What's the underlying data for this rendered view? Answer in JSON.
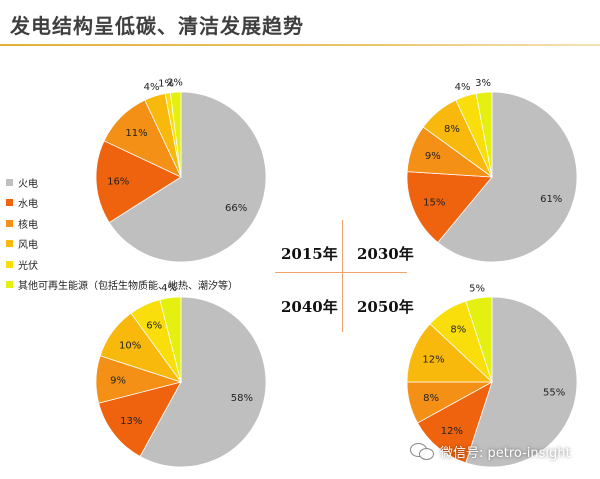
{
  "header": {
    "title": "发电结构呈低碳、清洁发展趋势"
  },
  "legend": {
    "items": [
      {
        "label": "火电",
        "color": "#bfbfbf"
      },
      {
        "label": "水电",
        "color": "#f0630e"
      },
      {
        "label": "核电",
        "color": "#f59016"
      },
      {
        "label": "风电",
        "color": "#f8b90c"
      },
      {
        "label": "光伏",
        "color": "#f9de0c"
      },
      {
        "label": "其他可再生能源（包括生物质能、地热、潮汐等）",
        "color": "#e4f00f"
      }
    ]
  },
  "years": {
    "y2015": "2015年",
    "y2030": "2030年",
    "y2040": "2040年",
    "y2050": "2050年"
  },
  "watermark": {
    "text": "微信号: petro-insight"
  },
  "chart_data": [
    {
      "type": "pie",
      "label": "2015年",
      "categories": [
        "火电",
        "水电",
        "核电",
        "风电",
        "光伏",
        "其他可再生能源（包括生物质能、地热、潮汐等）"
      ],
      "values": [
        66,
        16,
        11,
        4,
        1,
        2
      ],
      "labels": [
        "66%",
        "16%",
        "11%",
        "4%",
        "1%",
        "2%"
      ]
    },
    {
      "type": "pie",
      "label": "2030年",
      "categories": [
        "火电",
        "水电",
        "核电",
        "风电",
        "光伏",
        "其他可再生能源（包括生物质能、地热、潮汐等）"
      ],
      "values": [
        61,
        15,
        9,
        8,
        4,
        3
      ],
      "labels": [
        "61%",
        "15%",
        "9%",
        "8%",
        "4%",
        "3%"
      ]
    },
    {
      "type": "pie",
      "label": "2040年",
      "categories": [
        "火电",
        "水电",
        "核电",
        "风电",
        "光伏",
        "其他可再生能源（包括生物质能、地热、潮汐等）"
      ],
      "values": [
        58,
        13,
        9,
        10,
        6,
        4
      ],
      "labels": [
        "58%",
        "13%",
        "9%",
        "10%",
        "6%",
        "4%"
      ]
    },
    {
      "type": "pie",
      "label": "2050年",
      "categories": [
        "火电",
        "水电",
        "核电",
        "风电",
        "光伏",
        "其他可再生能源（包括生物质能、地热、潮汐等）"
      ],
      "values": [
        55,
        12,
        8,
        12,
        8,
        5
      ],
      "labels": [
        "55%",
        "12%",
        "8%",
        "12%",
        "8%",
        "5%"
      ]
    }
  ]
}
